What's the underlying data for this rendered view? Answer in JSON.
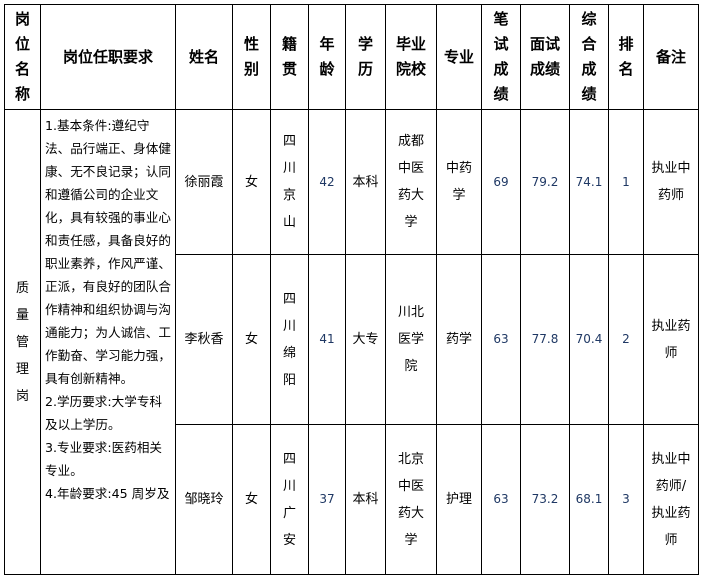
{
  "headers": {
    "post": "岗位名称",
    "requirements": "岗位任职要求",
    "name": "姓名",
    "gender": "性别",
    "origin": "籍贯",
    "age": "年龄",
    "education": "学历",
    "school": "毕业院校",
    "major": "专业",
    "written": "笔试成绩",
    "interview": "面试成绩",
    "total": "综合成绩",
    "rank": "排名",
    "remark": "备注"
  },
  "post": "质量管理岗",
  "requirements": [
    "1.基本条件:遵纪守法、品行端正、身体健康、无不良记录；认同和遵循公司的企业文化，具有较强的事业心和责任感，具备良好的职业素养，作风严谨、正派，有良好的团队合作精神和组织协调与沟通能力；为人诚信、工作勤奋、学习能力强，具有创新精神。",
    "2.学历要求:大学专科及以上学历。",
    "3.专业要求:医药相关专业。",
    "4.年龄要求:45 周岁及"
  ],
  "rows": [
    {
      "name": "徐丽霞",
      "gender": "女",
      "origin": "四川京山",
      "age": "42",
      "education": "本科",
      "school": "成都中医药大学",
      "major": "中药学",
      "written": "69",
      "interview": "79.2",
      "total": "74.1",
      "rank": "1",
      "remark": "执业中药师"
    },
    {
      "name": "李秋香",
      "gender": "女",
      "origin": "四川绵阳",
      "age": "41",
      "education": "大专",
      "school": "川北医学院",
      "major": "药学",
      "written": "63",
      "interview": "77.8",
      "total": "70.4",
      "rank": "2",
      "remark": "执业药师"
    },
    {
      "name": "邹晓玲",
      "gender": "女",
      "origin": "四川广安",
      "age": "37",
      "education": "本科",
      "school": "北京中医药大学",
      "major": "护理",
      "written": "63",
      "interview": "73.2",
      "total": "68.1",
      "rank": "3",
      "remark": "执业中药师/执业药师"
    }
  ],
  "colors": {
    "number_text": "#1f3864",
    "border": "#000000"
  }
}
